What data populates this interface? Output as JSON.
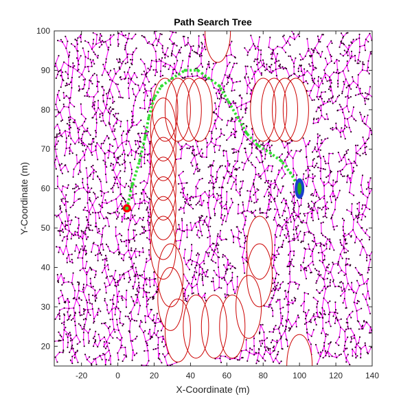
{
  "chart_data": {
    "type": "scatter",
    "title": "Path Search Tree",
    "xlabel": "X-Coordinate (m)",
    "ylabel": "Y-Coordinate (m)",
    "xlim": [
      -35,
      140
    ],
    "ylim": [
      15,
      100
    ],
    "xticks": [
      -20,
      0,
      20,
      40,
      60,
      80,
      100,
      120,
      140
    ],
    "yticks": [
      20,
      30,
      40,
      50,
      60,
      70,
      80,
      90,
      100
    ],
    "grid": false,
    "colors": {
      "tree_edges": "#ff00ff",
      "tree_nodes": "#2a0020",
      "obstacles_edge": "#cc0000",
      "obstacles_fill": "#ffffff",
      "path": "#33dd33",
      "start": "#ff0000",
      "goal": "#1a3fcc",
      "goal_fill": "#22aa22"
    },
    "start": {
      "x": 5,
      "y": 55
    },
    "goal": {
      "x": 100,
      "y": 60
    },
    "path": [
      {
        "x": 5,
        "y": 55
      },
      {
        "x": 8,
        "y": 61
      },
      {
        "x": 12,
        "y": 67
      },
      {
        "x": 15,
        "y": 73
      },
      {
        "x": 17,
        "y": 78
      },
      {
        "x": 20,
        "y": 83
      },
      {
        "x": 24,
        "y": 86
      },
      {
        "x": 30,
        "y": 88
      },
      {
        "x": 37,
        "y": 90
      },
      {
        "x": 44,
        "y": 90
      },
      {
        "x": 50,
        "y": 88
      },
      {
        "x": 56,
        "y": 86
      },
      {
        "x": 61,
        "y": 82
      },
      {
        "x": 66,
        "y": 78
      },
      {
        "x": 71,
        "y": 74
      },
      {
        "x": 77,
        "y": 71
      },
      {
        "x": 84,
        "y": 69
      },
      {
        "x": 90,
        "y": 67
      },
      {
        "x": 95,
        "y": 64
      },
      {
        "x": 100,
        "y": 60
      }
    ],
    "obstacles": [
      {
        "cx": 55,
        "cy": 100,
        "rx": 7,
        "ry": 8
      },
      {
        "cx": 26,
        "cy": 80,
        "rx": 7,
        "ry": 8
      },
      {
        "cx": 33,
        "cy": 80,
        "rx": 7,
        "ry": 8
      },
      {
        "cx": 39,
        "cy": 80,
        "rx": 7,
        "ry": 8
      },
      {
        "cx": 45,
        "cy": 80,
        "rx": 7,
        "ry": 8
      },
      {
        "cx": 80,
        "cy": 80,
        "rx": 7,
        "ry": 8
      },
      {
        "cx": 86,
        "cy": 80,
        "rx": 7,
        "ry": 8
      },
      {
        "cx": 92,
        "cy": 80,
        "rx": 7,
        "ry": 8
      },
      {
        "cx": 98,
        "cy": 80,
        "rx": 7,
        "ry": 8
      },
      {
        "cx": 25,
        "cy": 75,
        "rx": 7,
        "ry": 8
      },
      {
        "cx": 25,
        "cy": 70,
        "rx": 7,
        "ry": 8
      },
      {
        "cx": 25,
        "cy": 65,
        "rx": 7,
        "ry": 8
      },
      {
        "cx": 25,
        "cy": 60,
        "rx": 7,
        "ry": 8
      },
      {
        "cx": 25,
        "cy": 55,
        "rx": 7,
        "ry": 8
      },
      {
        "cx": 25,
        "cy": 50,
        "rx": 7,
        "ry": 8
      },
      {
        "cx": 25,
        "cy": 45,
        "rx": 7,
        "ry": 8
      },
      {
        "cx": 29,
        "cy": 38,
        "rx": 7,
        "ry": 8
      },
      {
        "cx": 29,
        "cy": 32,
        "rx": 7,
        "ry": 8
      },
      {
        "cx": 33,
        "cy": 24,
        "rx": 7,
        "ry": 8
      },
      {
        "cx": 43,
        "cy": 25,
        "rx": 7,
        "ry": 8
      },
      {
        "cx": 53,
        "cy": 25,
        "rx": 7,
        "ry": 8
      },
      {
        "cx": 63,
        "cy": 25,
        "rx": 7,
        "ry": 8
      },
      {
        "cx": 72,
        "cy": 30,
        "rx": 7,
        "ry": 8
      },
      {
        "cx": 78,
        "cy": 38,
        "rx": 7,
        "ry": 8
      },
      {
        "cx": 78,
        "cy": 45,
        "rx": 7,
        "ry": 8
      },
      {
        "cx": 100,
        "cy": 15,
        "rx": 7,
        "ry": 8
      }
    ]
  }
}
